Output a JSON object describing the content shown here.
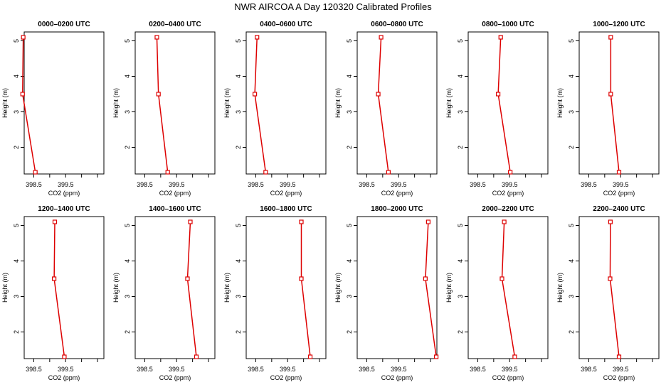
{
  "title": "NWR AIRCOA A  Day 120320  Calibrated Profiles",
  "colors": {
    "series": "#dd0000",
    "axis": "#000000",
    "background": "#ffffff"
  },
  "chart_data": [
    {
      "type": "line",
      "title": "0000–0200 UTC",
      "xlabel": "CO2 (ppm)",
      "ylabel": "Height (m)",
      "xlim": [
        398.2,
        400.7
      ],
      "ylim": [
        1.25,
        5.25
      ],
      "x_ticks": [
        398.5,
        399.5
      ],
      "y_ticks": [
        2,
        3,
        4,
        5
      ],
      "points": [
        {
          "height": 5.1,
          "co2": 398.17
        },
        {
          "height": 3.5,
          "co2": 398.15
        },
        {
          "height": 1.3,
          "co2": 398.55
        }
      ]
    },
    {
      "type": "line",
      "title": "0200–0400 UTC",
      "xlabel": "CO2 (ppm)",
      "ylabel": "Height (m)",
      "xlim": [
        398.2,
        400.7
      ],
      "ylim": [
        1.25,
        5.25
      ],
      "x_ticks": [
        398.5,
        399.5
      ],
      "y_ticks": [
        2,
        3,
        4,
        5
      ],
      "points": [
        {
          "height": 5.1,
          "co2": 398.88
        },
        {
          "height": 3.5,
          "co2": 398.93
        },
        {
          "height": 1.3,
          "co2": 399.22
        }
      ]
    },
    {
      "type": "line",
      "title": "0400–0600 UTC",
      "xlabel": "CO2 (ppm)",
      "ylabel": "Height (m)",
      "xlim": [
        398.2,
        400.7
      ],
      "ylim": [
        1.25,
        5.25
      ],
      "x_ticks": [
        398.5,
        399.5
      ],
      "y_ticks": [
        2,
        3,
        4,
        5
      ],
      "points": [
        {
          "height": 5.1,
          "co2": 398.54
        },
        {
          "height": 3.5,
          "co2": 398.47
        },
        {
          "height": 1.3,
          "co2": 398.81
        }
      ]
    },
    {
      "type": "line",
      "title": "0600–0800 UTC",
      "xlabel": "CO2 (ppm)",
      "ylabel": "Height (m)",
      "xlim": [
        398.2,
        400.7
      ],
      "ylim": [
        1.25,
        5.25
      ],
      "x_ticks": [
        398.5,
        399.5
      ],
      "y_ticks": [
        2,
        3,
        4,
        5
      ],
      "points": [
        {
          "height": 5.1,
          "co2": 398.95
        },
        {
          "height": 3.5,
          "co2": 398.86
        },
        {
          "height": 1.3,
          "co2": 399.18
        }
      ]
    },
    {
      "type": "line",
      "title": "0800–1000 UTC",
      "xlabel": "CO2 (ppm)",
      "ylabel": "Height (m)",
      "xlim": [
        398.2,
        400.7
      ],
      "ylim": [
        1.25,
        5.25
      ],
      "x_ticks": [
        398.5,
        399.5
      ],
      "y_ticks": [
        2,
        3,
        4,
        5
      ],
      "points": [
        {
          "height": 5.1,
          "co2": 399.22
        },
        {
          "height": 3.5,
          "co2": 399.14
        },
        {
          "height": 1.3,
          "co2": 399.52
        }
      ]
    },
    {
      "type": "line",
      "title": "1000–1200 UTC",
      "xlabel": "CO2 (ppm)",
      "ylabel": "Height (m)",
      "xlim": [
        398.2,
        400.7
      ],
      "ylim": [
        1.25,
        5.25
      ],
      "x_ticks": [
        398.5,
        399.5
      ],
      "y_ticks": [
        2,
        3,
        4,
        5
      ],
      "points": [
        {
          "height": 5.1,
          "co2": 399.19
        },
        {
          "height": 3.5,
          "co2": 399.19
        },
        {
          "height": 1.3,
          "co2": 399.45
        }
      ]
    },
    {
      "type": "line",
      "title": "1200–1400 UTC",
      "xlabel": "CO2 (ppm)",
      "ylabel": "Height (m)",
      "xlim": [
        398.2,
        400.7
      ],
      "ylim": [
        1.25,
        5.25
      ],
      "x_ticks": [
        398.5,
        399.5
      ],
      "y_ticks": [
        2,
        3,
        4,
        5
      ],
      "points": [
        {
          "height": 5.1,
          "co2": 399.16
        },
        {
          "height": 3.5,
          "co2": 399.14
        },
        {
          "height": 1.3,
          "co2": 399.46
        }
      ]
    },
    {
      "type": "line",
      "title": "1400–1600 UTC",
      "xlabel": "CO2 (ppm)",
      "ylabel": "Height (m)",
      "xlim": [
        398.2,
        400.7
      ],
      "ylim": [
        1.25,
        5.25
      ],
      "x_ticks": [
        398.5,
        399.5
      ],
      "y_ticks": [
        2,
        3,
        4,
        5
      ],
      "points": [
        {
          "height": 5.1,
          "co2": 399.93
        },
        {
          "height": 3.5,
          "co2": 399.84
        },
        {
          "height": 1.3,
          "co2": 400.12
        }
      ]
    },
    {
      "type": "line",
      "title": "1600–1800 UTC",
      "xlabel": "CO2 (ppm)",
      "ylabel": "Height (m)",
      "xlim": [
        398.2,
        400.7
      ],
      "ylim": [
        1.25,
        5.25
      ],
      "x_ticks": [
        398.5,
        399.5
      ],
      "y_ticks": [
        2,
        3,
        4,
        5
      ],
      "points": [
        {
          "height": 5.1,
          "co2": 399.93
        },
        {
          "height": 3.5,
          "co2": 399.93
        },
        {
          "height": 1.3,
          "co2": 400.21
        }
      ]
    },
    {
      "type": "line",
      "title": "1800–2000 UTC",
      "xlabel": "CO2 (ppm)",
      "ylabel": "Height (m)",
      "xlim": [
        398.2,
        400.7
      ],
      "ylim": [
        1.25,
        5.25
      ],
      "x_ticks": [
        398.5,
        399.5
      ],
      "y_ticks": [
        2,
        3,
        4,
        5
      ],
      "points": [
        {
          "height": 5.1,
          "co2": 400.43
        },
        {
          "height": 3.5,
          "co2": 400.34
        },
        {
          "height": 1.3,
          "co2": 400.68
        }
      ]
    },
    {
      "type": "line",
      "title": "2000–2200 UTC",
      "xlabel": "CO2 (ppm)",
      "ylabel": "Height (m)",
      "xlim": [
        398.2,
        400.7
      ],
      "ylim": [
        1.25,
        5.25
      ],
      "x_ticks": [
        398.5,
        399.5
      ],
      "y_ticks": [
        2,
        3,
        4,
        5
      ],
      "points": [
        {
          "height": 5.1,
          "co2": 399.33
        },
        {
          "height": 3.5,
          "co2": 399.26
        },
        {
          "height": 1.3,
          "co2": 399.66
        }
      ]
    },
    {
      "type": "line",
      "title": "2200–2400 UTC",
      "xlabel": "CO2 (ppm)",
      "ylabel": "Height (m)",
      "xlim": [
        398.2,
        400.7
      ],
      "ylim": [
        1.25,
        5.25
      ],
      "x_ticks": [
        398.5,
        399.5
      ],
      "y_ticks": [
        2,
        3,
        4,
        5
      ],
      "points": [
        {
          "height": 5.1,
          "co2": 399.18
        },
        {
          "height": 3.5,
          "co2": 399.17
        },
        {
          "height": 1.3,
          "co2": 399.45
        }
      ]
    }
  ]
}
